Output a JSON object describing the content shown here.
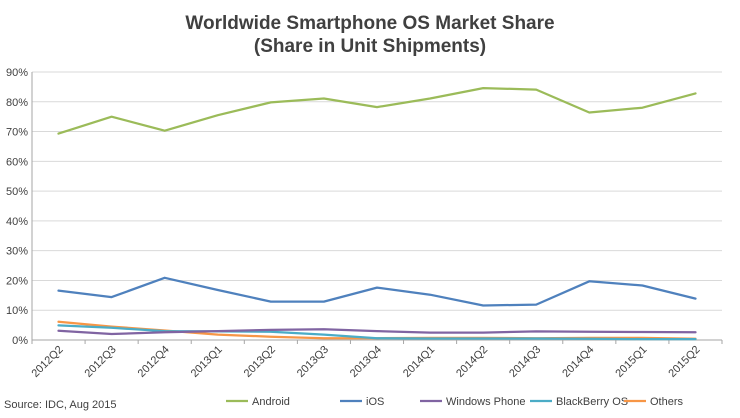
{
  "source": "Source: IDC, Aug 2015",
  "chart_data": {
    "type": "line",
    "title": "Worldwide Smartphone OS Market Share",
    "subtitle": "(Share in Unit Shipments)",
    "xlabel": "",
    "ylabel": "",
    "ylim": [
      0,
      90
    ],
    "yticks": [
      "0%",
      "10%",
      "20%",
      "30%",
      "40%",
      "50%",
      "60%",
      "70%",
      "80%",
      "90%"
    ],
    "grid": true,
    "legend_position": "bottom",
    "categories": [
      "2012Q2",
      "2012Q3",
      "2012Q4",
      "2013Q1",
      "2013Q2",
      "2013Q3",
      "2013Q4",
      "2014Q1",
      "2014Q2",
      "2014Q3",
      "2014Q4",
      "2015Q1",
      "2015Q2"
    ],
    "series": [
      {
        "name": "Android",
        "color": "#9bbb59",
        "values": [
          69.3,
          75.0,
          70.3,
          75.5,
          79.8,
          81.1,
          78.2,
          81.1,
          84.6,
          84.1,
          76.4,
          78.0,
          82.8
        ]
      },
      {
        "name": "iOS",
        "color": "#4f81bd",
        "values": [
          16.6,
          14.4,
          20.9,
          16.8,
          12.9,
          12.9,
          17.6,
          15.2,
          11.6,
          11.9,
          19.7,
          18.3,
          13.9
        ]
      },
      {
        "name": "Windows Phone",
        "color": "#8064a2",
        "values": [
          3.1,
          2.0,
          2.6,
          3.0,
          3.4,
          3.6,
          3.0,
          2.5,
          2.5,
          2.9,
          2.8,
          2.7,
          2.6
        ]
      },
      {
        "name": "BlackBerry OS",
        "color": "#4bacc6",
        "values": [
          4.9,
          4.1,
          3.0,
          2.9,
          2.8,
          1.8,
          0.6,
          0.5,
          0.5,
          0.5,
          0.4,
          0.3,
          0.3
        ]
      },
      {
        "name": "Others",
        "color": "#f79646",
        "values": [
          6.1,
          4.5,
          3.2,
          1.8,
          1.1,
          0.6,
          0.6,
          0.7,
          0.7,
          0.6,
          0.7,
          0.7,
          0.4
        ]
      }
    ]
  }
}
